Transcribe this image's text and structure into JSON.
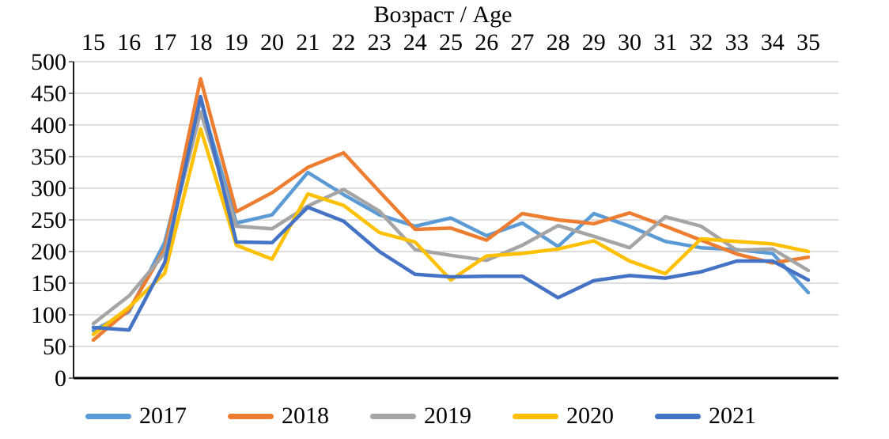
{
  "chart_data": {
    "type": "line",
    "title": "Возраст / Age",
    "x_axis": {
      "label": "Возраст / Age",
      "label_position": "top",
      "categories": [
        "15",
        "16",
        "17",
        "18",
        "19",
        "20",
        "21",
        "22",
        "23",
        "24",
        "25",
        "26",
        "27",
        "28",
        "29",
        "30",
        "31",
        "32",
        "33",
        "34",
        "35"
      ]
    },
    "y_axis": {
      "min": 0,
      "max": 500,
      "step": 50,
      "tick_labels": [
        "0",
        "50",
        "100",
        "150",
        "200",
        "250",
        "300",
        "350",
        "400",
        "450",
        "500"
      ]
    },
    "grid": true,
    "legend": {
      "position": "bottom",
      "entries": [
        "2017",
        "2018",
        "2019",
        "2020",
        "2021"
      ]
    },
    "series": [
      {
        "name": "2017",
        "color": "#5B9BD5",
        "values": [
          75,
          105,
          215,
          440,
          245,
          258,
          325,
          290,
          258,
          240,
          253,
          225,
          245,
          208,
          260,
          240,
          216,
          206,
          203,
          197,
          135
        ]
      },
      {
        "name": "2018",
        "color": "#ED7D31",
        "values": [
          60,
          108,
          204,
          473,
          263,
          293,
          333,
          356,
          295,
          235,
          237,
          218,
          260,
          250,
          244,
          261,
          240,
          218,
          196,
          182,
          191
        ]
      },
      {
        "name": "2019",
        "color": "#A5A5A5",
        "values": [
          86,
          130,
          197,
          421,
          240,
          236,
          272,
          298,
          264,
          203,
          194,
          186,
          210,
          241,
          224,
          206,
          255,
          240,
          202,
          204,
          170
        ]
      },
      {
        "name": "2020",
        "color": "#FFC000",
        "values": [
          69,
          112,
          166,
          394,
          210,
          188,
          291,
          273,
          230,
          215,
          155,
          193,
          197,
          204,
          217,
          185,
          165,
          220,
          216,
          212,
          200
        ]
      },
      {
        "name": "2021",
        "color": "#4472C4",
        "values": [
          80,
          76,
          183,
          445,
          215,
          214,
          270,
          248,
          200,
          164,
          160,
          161,
          161,
          127,
          154,
          162,
          158,
          168,
          185,
          185,
          155
        ]
      }
    ],
    "colors": {
      "gridline": "#D9D9D9",
      "axis": "#000000",
      "text": "#000000"
    }
  }
}
